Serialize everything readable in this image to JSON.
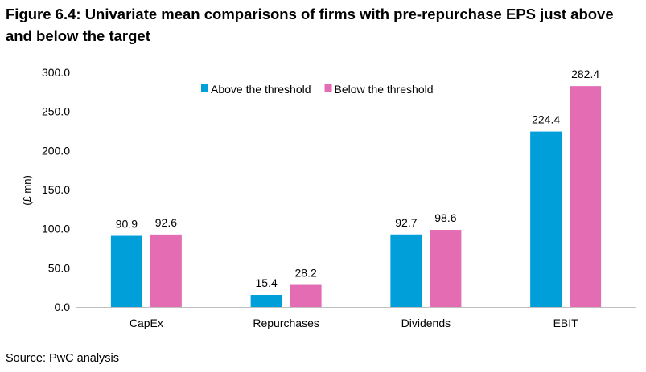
{
  "figure": {
    "title": "Figure 6.4:  Univariate mean comparisons of firms with pre-repurchase EPS just above and below the target",
    "source": "Source: PwC analysis"
  },
  "chart_data": {
    "type": "bar",
    "title": "",
    "xlabel": "",
    "ylabel": "(£ mn)",
    "categories": [
      "CapEx",
      "Repurchases",
      "Dividends",
      "EBIT"
    ],
    "series": [
      {
        "name": "Above the threshold",
        "color": "#009fda",
        "values": [
          90.9,
          15.4,
          92.7,
          224.4
        ]
      },
      {
        "name": "Below the threshold",
        "color": "#e36cb3",
        "values": [
          92.6,
          28.2,
          98.6,
          282.4
        ]
      }
    ],
    "ylim": [
      0,
      300
    ],
    "yticks": [
      "0.0",
      "50.0",
      "100.0",
      "150.0",
      "200.0",
      "250.0",
      "300.0"
    ],
    "grid": false,
    "legend_position": "top"
  }
}
